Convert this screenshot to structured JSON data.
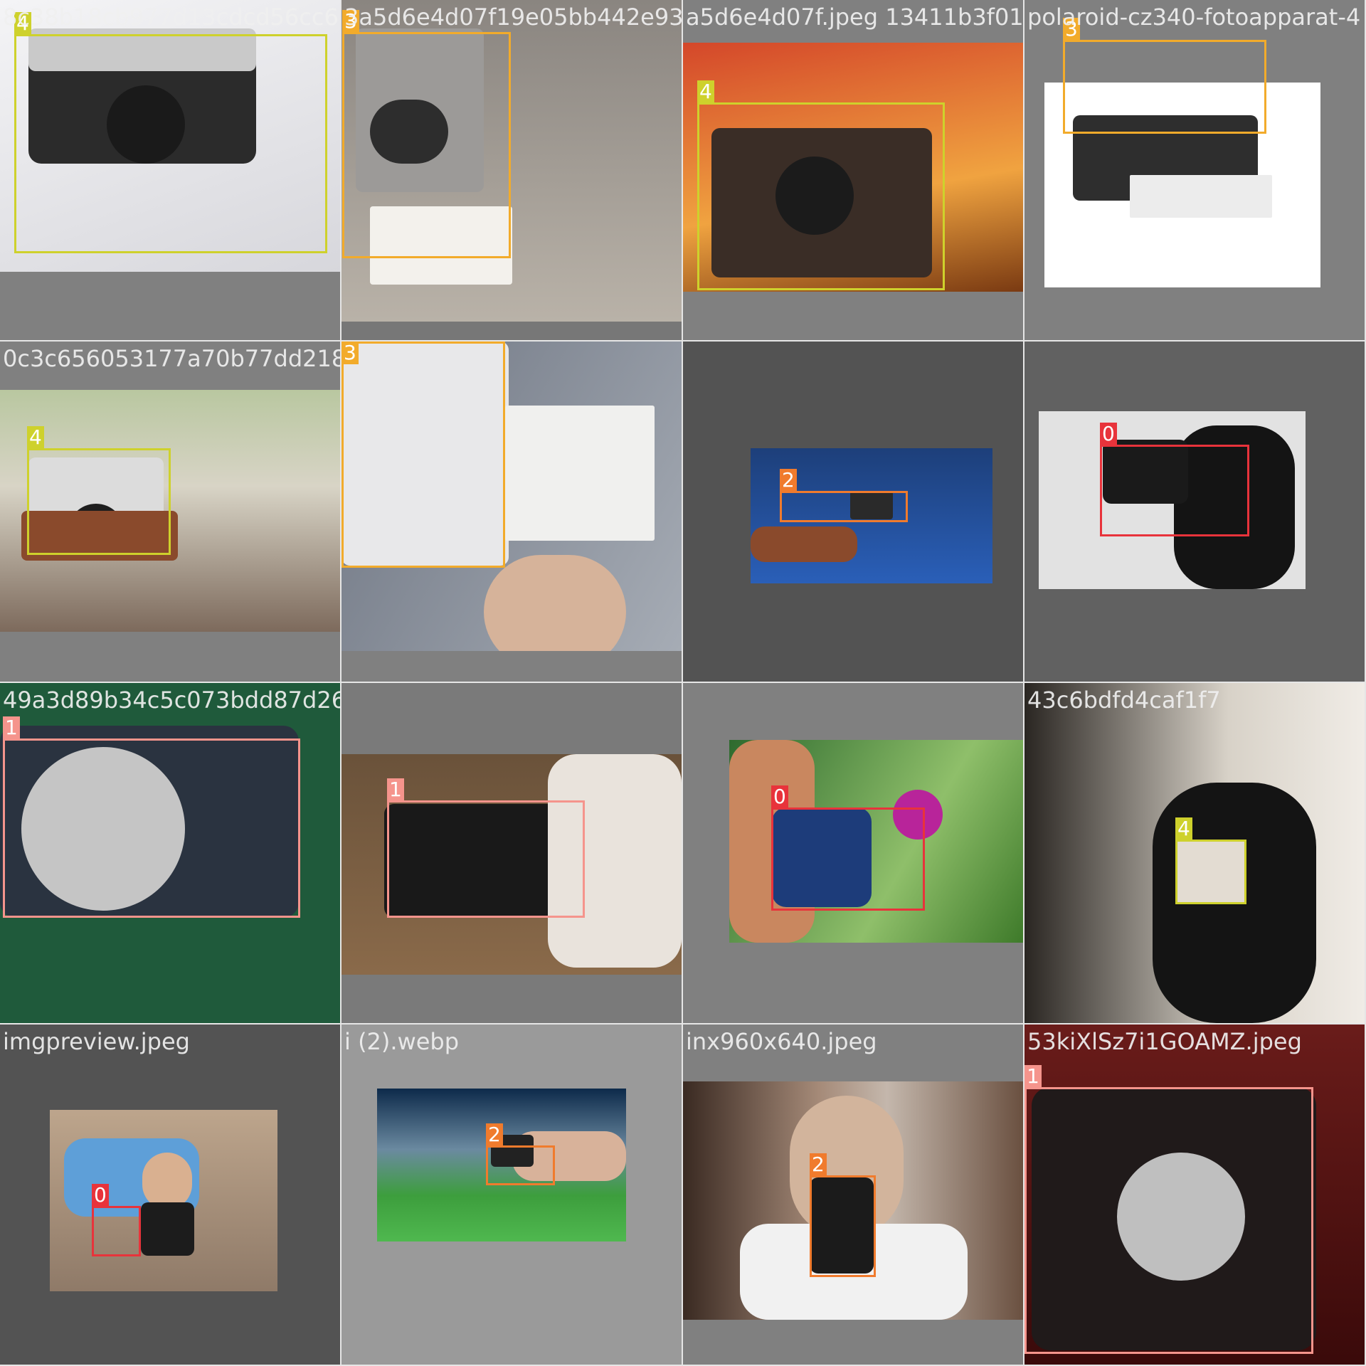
{
  "class_colors": {
    "0": "#e8333b",
    "1": "#f5948c",
    "2": "#f07b2d",
    "3": "#f2ab2b",
    "4": "#ced12c"
  },
  "tiles": [
    {
      "filename": "8c38b18cb977d13cdcd56cc6",
      "bg": "#808080",
      "boxes": [
        {
          "cls": "4"
        }
      ]
    },
    {
      "filename": "3a5d6e4d07f19e05bb442e930d3c1ae1f02fj7_45-papik-pro-p",
      "bg": "#777777",
      "boxes": [
        {
          "cls": "3"
        }
      ]
    },
    {
      "filename": "a5d6e4d07f.jpeg 13411b3f01j7e45-papik-pro-pdlearoidezasterfotoapparat-4",
      "bg": "#808080",
      "boxes": [
        {
          "cls": "4"
        }
      ]
    },
    {
      "filename": "polaroid-cz340-fotoapparat-4",
      "bg": "#808080",
      "boxes": [
        {
          "cls": "3"
        }
      ]
    },
    {
      "filename": "0c3c656053177a70b77dd21895b92891b7ddccab8775e8737d0fe8-hand-technology-photo-fp463792.webp",
      "bg": "#808080",
      "boxes": [
        {
          "cls": "4"
        }
      ]
    },
    {
      "filename": "",
      "bg": "#808080",
      "boxes": [
        {
          "cls": "3"
        }
      ]
    },
    {
      "filename": "",
      "bg": "#535353",
      "boxes": [
        {
          "cls": "2"
        }
      ]
    },
    {
      "filename": "",
      "bg": "#616161",
      "boxes": [
        {
          "cls": "0"
        }
      ]
    },
    {
      "filename": "49a3d89b34c5c073bdd87d266f7385575a2ebc3968acb3cb7c5de47Q.jpeg",
      "bg": "#808080",
      "boxes": [
        {
          "cls": "1"
        }
      ]
    },
    {
      "filename": "",
      "bg": "#7a7a7a",
      "boxes": [
        {
          "cls": "1"
        }
      ]
    },
    {
      "filename": "",
      "bg": "#808080",
      "boxes": [
        {
          "cls": "0"
        }
      ]
    },
    {
      "filename": "43c6bdfd4caf1f7",
      "bg": "#808080",
      "boxes": [
        {
          "cls": "4"
        }
      ]
    },
    {
      "filename": "imgpreview.jpeg",
      "bg": "#535353",
      "boxes": [
        {
          "cls": "0"
        }
      ]
    },
    {
      "filename": "i (2).webp",
      "bg": "#9a9a9a",
      "boxes": [
        {
          "cls": "2"
        }
      ]
    },
    {
      "filename": "inx960x640.jpeg",
      "bg": "#808080",
      "boxes": [
        {
          "cls": "2"
        }
      ]
    },
    {
      "filename": "53kiXlSz7i1GOAMZ.jpeg",
      "bg": "#808080",
      "boxes": [
        {
          "cls": "1"
        }
      ]
    }
  ]
}
